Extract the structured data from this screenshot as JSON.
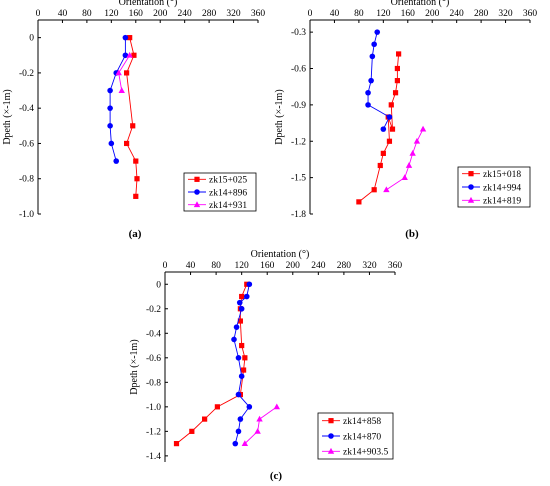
{
  "chart_data": [
    {
      "type": "line",
      "caption": "(a)",
      "xlabel": "Orientation (°)",
      "ylabel": "Dpeth (×-1m)",
      "xlim": [
        0,
        360
      ],
      "ylim": [
        -1.0,
        0.1
      ],
      "xticks": [
        "0",
        "40",
        "80",
        "120",
        "160",
        "200",
        "240",
        "280",
        "320",
        "360"
      ],
      "yticks": [
        "0",
        "-0.2",
        "-0.4",
        "-0.6",
        "-0.8",
        "-1.0"
      ],
      "legend_position": "bottom-right",
      "series": [
        {
          "name": "zk15+025",
          "color": "#ff0000",
          "marker": "square",
          "x": [
            150,
            157,
            145,
            155,
            145,
            160,
            162,
            160
          ],
          "y": [
            0,
            -0.1,
            -0.2,
            -0.5,
            -0.6,
            -0.7,
            -0.8,
            -0.9
          ]
        },
        {
          "name": "zk14+896",
          "color": "#0000ff",
          "marker": "circle",
          "x": [
            143,
            143,
            128,
            118,
            118,
            118,
            120,
            128
          ],
          "y": [
            0,
            -0.1,
            -0.2,
            -0.3,
            -0.4,
            -0.5,
            -0.6,
            -0.7
          ]
        },
        {
          "name": "zk14+931",
          "color": "#ff00ff",
          "marker": "triangle",
          "x": [
            150,
            132,
            137
          ],
          "y": [
            -0.1,
            -0.2,
            -0.3
          ]
        }
      ]
    },
    {
      "type": "line",
      "caption": "(b)",
      "xlabel": "Orientation (°)",
      "ylabel": "Dpeth (×-1m)",
      "xlim": [
        0,
        360
      ],
      "ylim": [
        -1.8,
        -0.2
      ],
      "xticks": [
        "0",
        "40",
        "80",
        "120",
        "160",
        "200",
        "240",
        "280",
        "320",
        "360"
      ],
      "yticks": [
        "-0.3",
        "-0.6",
        "-0.9",
        "-1.2",
        "-1.5",
        "-1.8"
      ],
      "legend_position": "bottom-right",
      "series": [
        {
          "name": "zk15+018",
          "color": "#ff0000",
          "marker": "square",
          "x": [
            145,
            143,
            143,
            140,
            133,
            135,
            128,
            130,
            120,
            115,
            105,
            80
          ],
          "y": [
            -0.48,
            -0.6,
            -0.7,
            -0.8,
            -0.9,
            -1.1,
            -1.0,
            -1.2,
            -1.3,
            -1.4,
            -1.6,
            -1.7
          ]
        },
        {
          "name": "zk14+994",
          "color": "#0000ff",
          "marker": "circle",
          "x": [
            110,
            105,
            102,
            100,
            95,
            95,
            130,
            120
          ],
          "y": [
            -0.3,
            -0.4,
            -0.5,
            -0.7,
            -0.8,
            -0.9,
            -1.0,
            -1.1
          ]
        },
        {
          "name": "zk14+819",
          "color": "#ff00ff",
          "marker": "triangle",
          "x": [
            185,
            175,
            168,
            162,
            155,
            125
          ],
          "y": [
            -1.1,
            -1.2,
            -1.3,
            -1.4,
            -1.5,
            -1.6
          ]
        }
      ]
    },
    {
      "type": "line",
      "caption": "(c)",
      "xlabel": "Orientation (°)",
      "ylabel": "Dpeth (×-1m)",
      "xlim": [
        0,
        360
      ],
      "ylim": [
        -1.45,
        0.1
      ],
      "xticks": [
        "0",
        "40",
        "80",
        "120",
        "160",
        "200",
        "240",
        "280",
        "320",
        "360"
      ],
      "yticks": [
        "0",
        "-0.2",
        "-0.4",
        "-0.6",
        "-0.8",
        "-1.0",
        "-1.2",
        "-1.4"
      ],
      "legend_position": "bottom-right",
      "series": [
        {
          "name": "zk14+858",
          "color": "#ff0000",
          "marker": "square",
          "x": [
            128,
            120,
            118,
            118,
            120,
            125,
            123,
            118,
            82,
            62,
            42,
            18
          ],
          "y": [
            0,
            -0.1,
            -0.2,
            -0.3,
            -0.5,
            -0.6,
            -0.7,
            -0.9,
            -1.0,
            -1.1,
            -1.2,
            -1.3
          ]
        },
        {
          "name": "zk14+870",
          "color": "#0000ff",
          "marker": "circle",
          "x": [
            132,
            128,
            117,
            120,
            112,
            108,
            115,
            120,
            115,
            132,
            118,
            115,
            110
          ],
          "y": [
            0,
            -0.1,
            -0.15,
            -0.2,
            -0.35,
            -0.45,
            -0.6,
            -0.75,
            -0.9,
            -1.0,
            -1.1,
            -1.2,
            -1.3
          ]
        },
        {
          "name": "zk14+903.5",
          "color": "#ff00ff",
          "marker": "triangle",
          "x": [
            175,
            148,
            145,
            125
          ],
          "y": [
            -1.0,
            -1.1,
            -1.2,
            -1.3
          ]
        }
      ]
    }
  ]
}
